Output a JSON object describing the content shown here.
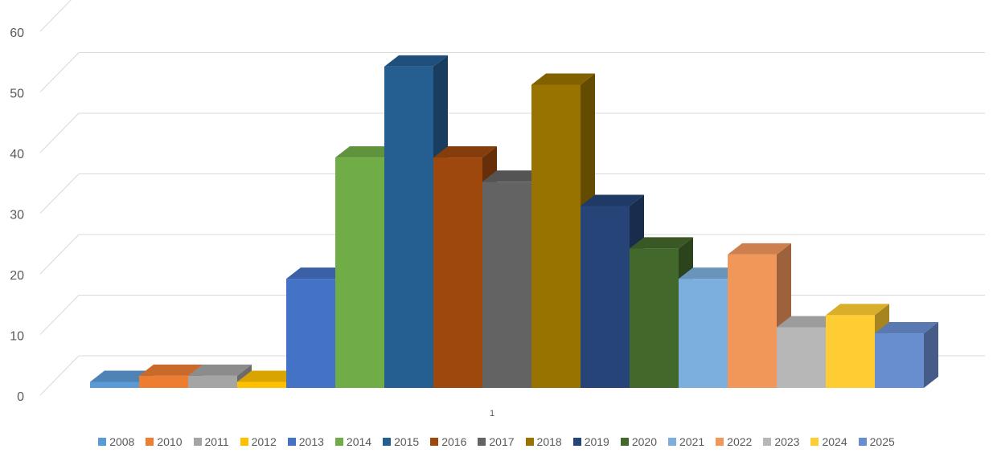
{
  "chart_data": {
    "type": "bar",
    "categories": [
      "1"
    ],
    "ylim": [
      0,
      60
    ],
    "yticks": [
      0,
      10,
      20,
      30,
      40,
      50,
      60
    ],
    "grid": true,
    "legend_position": "bottom",
    "series": [
      {
        "name": "2008",
        "values": [
          1
        ],
        "color": "#5b9bd5"
      },
      {
        "name": "2010",
        "values": [
          2
        ],
        "color": "#ed7d31"
      },
      {
        "name": "2011",
        "values": [
          2
        ],
        "color": "#a5a5a5"
      },
      {
        "name": "2012",
        "values": [
          1
        ],
        "color": "#ffc000"
      },
      {
        "name": "2013",
        "values": [
          18
        ],
        "color": "#4472c4"
      },
      {
        "name": "2014",
        "values": [
          38
        ],
        "color": "#70ad47"
      },
      {
        "name": "2015",
        "values": [
          53
        ],
        "color": "#255e91"
      },
      {
        "name": "2016",
        "values": [
          38
        ],
        "color": "#9e480e"
      },
      {
        "name": "2017",
        "values": [
          34
        ],
        "color": "#636363"
      },
      {
        "name": "2018",
        "values": [
          50
        ],
        "color": "#997300"
      },
      {
        "name": "2019",
        "values": [
          30
        ],
        "color": "#264478"
      },
      {
        "name": "2020",
        "values": [
          23
        ],
        "color": "#43682b"
      },
      {
        "name": "2021",
        "values": [
          18
        ],
        "color": "#7cafdd"
      },
      {
        "name": "2022",
        "values": [
          22
        ],
        "color": "#f1975a"
      },
      {
        "name": "2023",
        "values": [
          10
        ],
        "color": "#b7b7b7"
      },
      {
        "name": "2024",
        "values": [
          12
        ],
        "color": "#ffcd33"
      },
      {
        "name": "2025",
        "values": [
          9
        ],
        "color": "#698ed0"
      }
    ]
  }
}
